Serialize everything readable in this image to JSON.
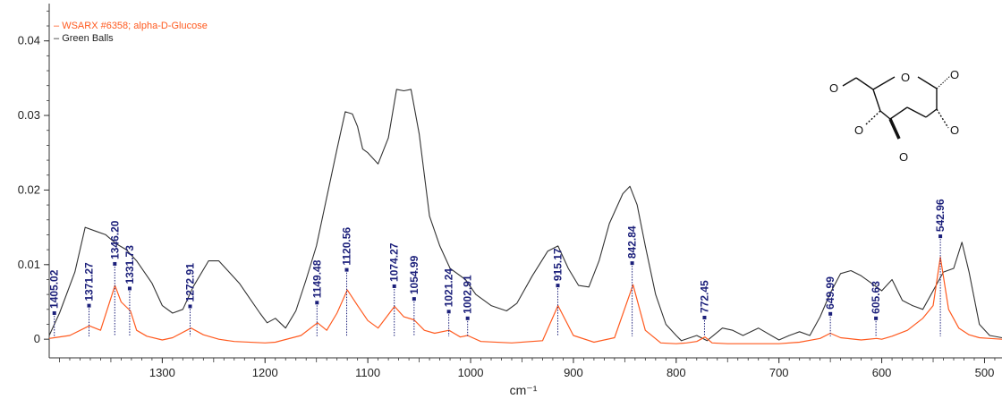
{
  "chart_data": {
    "type": "line",
    "xlabel": "cm⁻¹",
    "ylabel": "",
    "title": "",
    "x_reversed": true,
    "xlim": [
      1410,
      483
    ],
    "ylim": [
      -0.0025,
      0.045
    ],
    "x_ticks": [
      "1300",
      "1200",
      "1100",
      "1000",
      "900",
      "800",
      "700",
      "600",
      "500"
    ],
    "y_ticks": [
      "0",
      "0.01",
      "0.02",
      "0.03",
      "0.04"
    ],
    "legend": {
      "position": "top-left"
    },
    "grid": false,
    "series": [
      {
        "name": "WSARX #6358; alpha-D-Glucose",
        "color": "#ff5a1f",
        "x": [
          1410,
          1405,
          1390,
          1371,
          1360,
          1346,
          1340,
          1331,
          1325,
          1315,
          1300,
          1290,
          1272,
          1260,
          1245,
          1230,
          1200,
          1190,
          1165,
          1149,
          1140,
          1130,
          1120,
          1110,
          1100,
          1090,
          1074,
          1065,
          1055,
          1045,
          1035,
          1021,
          1010,
          1003,
          990,
          960,
          930,
          915,
          900,
          880,
          860,
          842,
          830,
          815,
          800,
          790,
          780,
          772,
          765,
          750,
          700,
          680,
          660,
          650,
          640,
          620,
          605,
          600,
          590,
          575,
          560,
          550,
          543,
          535,
          525,
          515,
          505,
          495,
          483
        ],
        "values": [
          0.0001,
          0.0002,
          0.0005,
          0.0018,
          0.0012,
          0.0072,
          0.005,
          0.0038,
          0.0012,
          0.0004,
          -0.0001,
          0.0002,
          0.0015,
          0.0006,
          0.0,
          -0.0003,
          -0.0005,
          -0.0004,
          0.0005,
          0.0022,
          0.0012,
          0.0035,
          0.0066,
          0.0045,
          0.0025,
          0.0015,
          0.0044,
          0.003,
          0.0026,
          0.0012,
          0.0008,
          0.0012,
          0.0003,
          0.0005,
          -0.0003,
          -0.0005,
          -0.0002,
          0.0045,
          0.0005,
          -0.0004,
          0.0002,
          0.0073,
          0.0012,
          -0.0005,
          -0.0006,
          -0.0005,
          -0.0003,
          0.0003,
          -0.0005,
          -0.0006,
          -0.0006,
          -0.0004,
          0.0001,
          0.0008,
          0.0002,
          -0.0001,
          0.0001,
          0.0,
          0.0004,
          0.0012,
          0.0028,
          0.0045,
          0.011,
          0.004,
          0.0015,
          0.0006,
          0.0002,
          0.0001,
          0.0
        ]
      },
      {
        "name": "Green Balls",
        "color": "#333333",
        "x": [
          1410,
          1400,
          1385,
          1375,
          1365,
          1355,
          1345,
          1335,
          1325,
          1310,
          1300,
          1290,
          1280,
          1270,
          1255,
          1245,
          1235,
          1225,
          1215,
          1205,
          1198,
          1190,
          1180,
          1170,
          1160,
          1150,
          1140,
          1130,
          1122,
          1115,
          1110,
          1105,
          1100,
          1090,
          1080,
          1072,
          1065,
          1058,
          1050,
          1040,
          1030,
          1020,
          1005,
          995,
          980,
          965,
          955,
          940,
          925,
          915,
          905,
          895,
          885,
          875,
          865,
          852,
          845,
          838,
          830,
          820,
          810,
          800,
          795,
          780,
          770,
          755,
          745,
          735,
          720,
          700,
          690,
          680,
          670,
          660,
          650,
          640,
          630,
          620,
          610,
          600,
          590,
          580,
          570,
          560,
          550,
          540,
          530,
          522,
          515,
          505,
          495,
          483
        ],
        "values": [
          0.0005,
          0.0035,
          0.009,
          0.015,
          0.0145,
          0.014,
          0.0128,
          0.012,
          0.0105,
          0.0075,
          0.0045,
          0.0035,
          0.004,
          0.007,
          0.0105,
          0.0105,
          0.009,
          0.0075,
          0.0055,
          0.0035,
          0.0022,
          0.0028,
          0.0015,
          0.0038,
          0.008,
          0.0125,
          0.019,
          0.0255,
          0.0305,
          0.0302,
          0.0285,
          0.0255,
          0.025,
          0.0235,
          0.027,
          0.0335,
          0.0333,
          0.0335,
          0.0275,
          0.0165,
          0.0125,
          0.0095,
          0.008,
          0.006,
          0.0045,
          0.0038,
          0.0048,
          0.0085,
          0.0118,
          0.0125,
          0.0095,
          0.0072,
          0.007,
          0.0105,
          0.0155,
          0.0195,
          0.0205,
          0.018,
          0.0125,
          0.006,
          0.002,
          0.0005,
          -0.0002,
          0.0005,
          -0.0002,
          0.0015,
          0.0012,
          0.0005,
          0.0015,
          -0.0001,
          0.0005,
          0.001,
          0.0005,
          0.003,
          0.0062,
          0.0088,
          0.0092,
          0.0085,
          0.0075,
          0.0065,
          0.008,
          0.0052,
          0.0045,
          0.004,
          0.0065,
          0.009,
          0.0095,
          0.013,
          0.009,
          0.002,
          0.0005,
          0.0002
        ]
      }
    ],
    "peak_labels": [
      {
        "x": 1405.02,
        "y": 0.0035,
        "label": "1405.02"
      },
      {
        "x": 1371.27,
        "y": 0.0045,
        "label": "1371.27"
      },
      {
        "x": 1346.2,
        "y": 0.0101,
        "label": "1346.20"
      },
      {
        "x": 1331.73,
        "y": 0.0068,
        "label": "1331.73"
      },
      {
        "x": 1272.91,
        "y": 0.0044,
        "label": "1272.91"
      },
      {
        "x": 1149.48,
        "y": 0.0049,
        "label": "1149.48"
      },
      {
        "x": 1120.56,
        "y": 0.0093,
        "label": "1120.56"
      },
      {
        "x": 1074.27,
        "y": 0.0071,
        "label": "1074.27"
      },
      {
        "x": 1054.99,
        "y": 0.0054,
        "label": "1054.99"
      },
      {
        "x": 1021.24,
        "y": 0.0037,
        "label": "1021.24"
      },
      {
        "x": 1002.91,
        "y": 0.0028,
        "label": "1002.91"
      },
      {
        "x": 915.17,
        "y": 0.0072,
        "label": "915.17"
      },
      {
        "x": 842.84,
        "y": 0.0102,
        "label": "842.84"
      },
      {
        "x": 772.45,
        "y": 0.0029,
        "label": "772.45"
      },
      {
        "x": 649.99,
        "y": 0.0034,
        "label": "649.99"
      },
      {
        "x": 605.63,
        "y": 0.0028,
        "label": "605.63"
      },
      {
        "x": 542.96,
        "y": 0.0138,
        "label": "542.96"
      }
    ],
    "structure_atoms": [
      "O",
      "O",
      "O",
      "O",
      "O",
      "O"
    ]
  }
}
